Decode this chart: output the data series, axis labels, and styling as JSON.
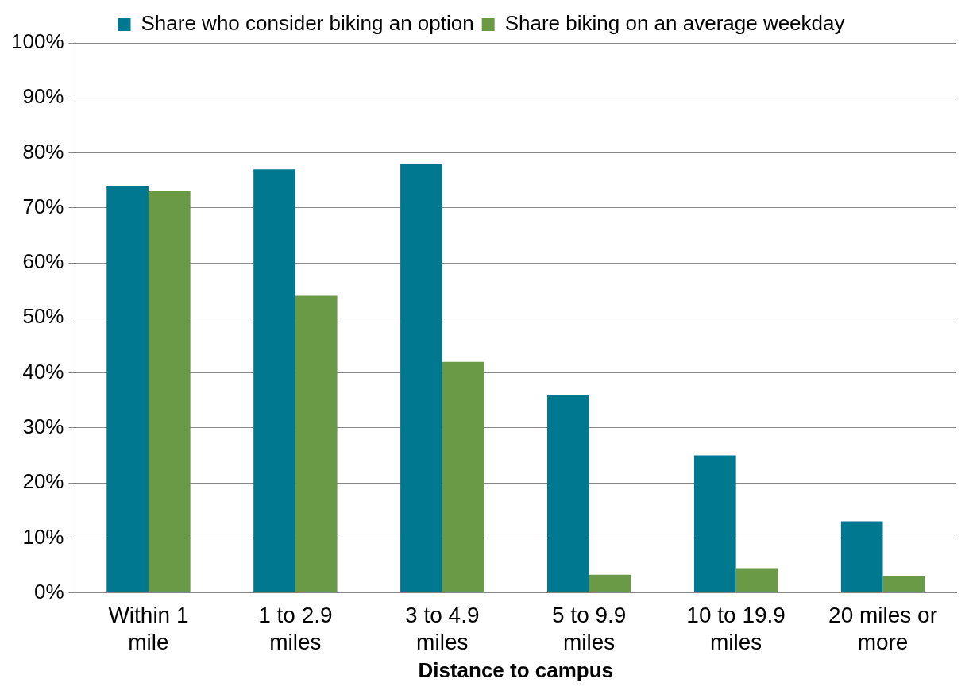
{
  "chart_data": {
    "type": "bar",
    "xlabel": "Distance to campus",
    "categories": [
      "Within 1 mile",
      "1 to 2.9 miles",
      "3 to 4.9 miles",
      "5 to 9.9 miles",
      "10 to 19.9 miles",
      "20 miles or more"
    ],
    "series": [
      {
        "name": "Share who consider biking an option",
        "color": "#00788f",
        "values": [
          74,
          77,
          78,
          36,
          25,
          13
        ]
      },
      {
        "name": "Share biking on an average weekday",
        "color": "#6a9a45",
        "values": [
          73,
          54,
          42,
          3.3,
          4.5,
          3
        ]
      }
    ],
    "ylim": [
      0,
      100
    ],
    "yticks": [
      {
        "value": 0,
        "label": "0%"
      },
      {
        "value": 10,
        "label": "10%"
      },
      {
        "value": 20,
        "label": "20%"
      },
      {
        "value": 30,
        "label": "30%"
      },
      {
        "value": 40,
        "label": "40%"
      },
      {
        "value": 50,
        "label": "50%"
      },
      {
        "value": 60,
        "label": "60%"
      },
      {
        "value": 70,
        "label": "70%"
      },
      {
        "value": 80,
        "label": "80%"
      },
      {
        "value": 90,
        "label": "90%"
      },
      {
        "value": 100,
        "label": "100%"
      }
    ],
    "grid": "y",
    "legend": "top"
  }
}
